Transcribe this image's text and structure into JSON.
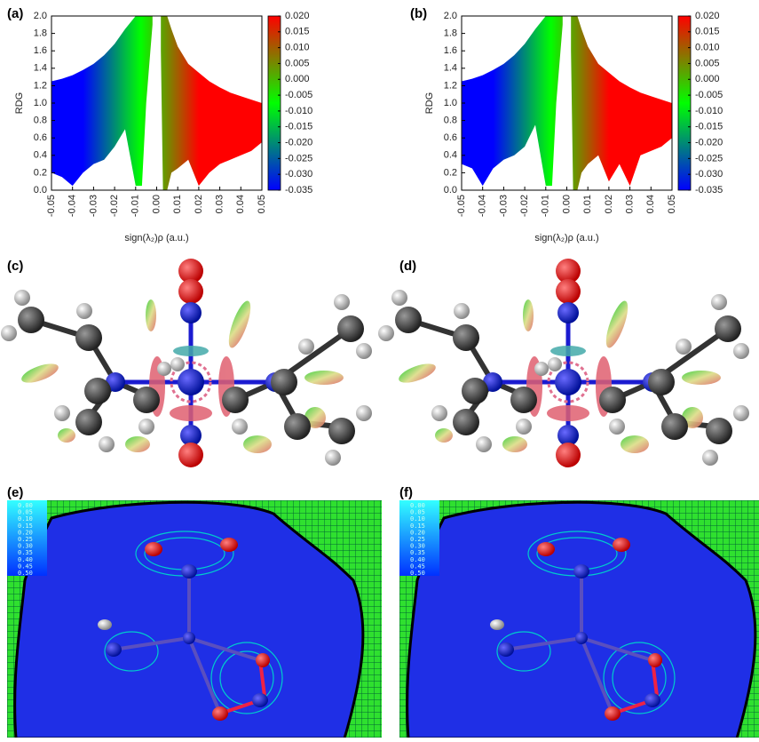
{
  "labels": [
    "(a)",
    "(b)",
    "(c)",
    "(d)",
    "(e)",
    "(f)"
  ],
  "contour_scale": [
    "0.00",
    "0.05",
    "0.10",
    "0.15",
    "0.20",
    "0.25",
    "0.30",
    "0.35",
    "0.40",
    "0.45",
    "0.50"
  ],
  "chart_data": [
    {
      "type": "band",
      "xlabel": "sign(λ₂)ρ (a.u.)",
      "ylabel": "RDG",
      "x": [
        -0.05,
        -0.045,
        -0.04,
        -0.035,
        -0.03,
        -0.025,
        -0.02,
        -0.015,
        -0.01,
        -0.007,
        -0.005,
        -0.003,
        -0.002,
        0,
        0.002,
        0.003,
        0.005,
        0.007,
        0.01,
        0.015,
        0.02,
        0.025,
        0.03,
        0.035,
        0.04,
        0.045,
        0.05
      ],
      "high": [
        1.25,
        1.28,
        1.32,
        1.38,
        1.45,
        1.55,
        1.68,
        1.85,
        2.0,
        2.0,
        2.0,
        2.0,
        2.0,
        null,
        2.0,
        2.0,
        2.0,
        1.85,
        1.65,
        1.45,
        1.35,
        1.25,
        1.18,
        1.12,
        1.08,
        1.04,
        1.0
      ],
      "low": [
        0.2,
        0.15,
        0.05,
        0.2,
        0.3,
        0.35,
        0.5,
        0.7,
        0.05,
        0.05,
        1.0,
        1.6,
        1.9,
        null,
        1.6,
        0.0,
        0.0,
        0.2,
        0.25,
        0.35,
        0.05,
        0.2,
        0.3,
        0.35,
        0.4,
        0.45,
        0.55
      ],
      "xlim": [
        -0.05,
        0.05
      ],
      "ylim": [
        0,
        2
      ],
      "xticks": [
        -0.05,
        -0.04,
        -0.03,
        -0.02,
        -0.01,
        {
          "value": 0,
          "label": "0.00"
        },
        0.01,
        0.02,
        0.03,
        0.04,
        0.05
      ],
      "yticks": [
        {
          "value": 0,
          "label": "0.0"
        },
        0.2,
        0.4,
        0.6,
        0.8,
        {
          "value": 1,
          "label": "1.0"
        },
        1.2,
        1.4,
        1.6,
        1.8,
        {
          "value": 2,
          "label": "2.0"
        }
      ],
      "colorbar": {
        "lim": [
          -0.035,
          0.02
        ],
        "colors": [
          "#0000ff",
          "#00ff00",
          "#ff0000"
        ],
        "ticks": [
          {
            "value": 0.02,
            "label": "0.020"
          },
          0.015,
          {
            "value": 0.01,
            "label": "0.010"
          },
          0.005,
          {
            "value": 0,
            "label": "0.000"
          },
          -0.005,
          {
            "value": -0.01,
            "label": "-0.010"
          },
          -0.015,
          {
            "value": -0.02,
            "label": "-0.020"
          },
          -0.025,
          {
            "value": -0.03,
            "label": "-0.030"
          },
          -0.035
        ]
      }
    },
    {
      "type": "band",
      "xlabel": "sign(λ₂)ρ (a.u.)",
      "ylabel": "RDG",
      "x": [
        -0.05,
        -0.045,
        -0.04,
        -0.035,
        -0.03,
        -0.025,
        -0.02,
        -0.015,
        -0.01,
        -0.007,
        -0.005,
        -0.003,
        -0.002,
        0,
        0.002,
        0.003,
        0.005,
        0.007,
        0.01,
        0.015,
        0.02,
        0.025,
        0.03,
        0.035,
        0.04,
        0.045,
        0.05
      ],
      "high": [
        1.25,
        1.28,
        1.32,
        1.38,
        1.45,
        1.55,
        1.68,
        1.85,
        2.0,
        2.0,
        2.0,
        2.0,
        2.0,
        null,
        2.0,
        2.0,
        2.0,
        1.85,
        1.65,
        1.45,
        1.35,
        1.25,
        1.18,
        1.12,
        1.08,
        1.04,
        1.0
      ],
      "low": [
        0.3,
        0.25,
        0.05,
        0.25,
        0.35,
        0.4,
        0.5,
        0.75,
        0.05,
        0.05,
        1.0,
        1.6,
        1.9,
        null,
        1.6,
        0.0,
        0.0,
        0.2,
        0.3,
        0.4,
        0.1,
        0.3,
        0.05,
        0.4,
        0.45,
        0.5,
        0.6
      ],
      "xlim": [
        -0.05,
        0.05
      ],
      "ylim": [
        0,
        2
      ],
      "xticks": [
        -0.05,
        -0.04,
        -0.03,
        -0.02,
        -0.01,
        {
          "value": 0,
          "label": "0.00"
        },
        0.01,
        0.02,
        0.03,
        0.04,
        0.05
      ],
      "yticks": [
        {
          "value": 0,
          "label": "0.0"
        },
        0.2,
        0.4,
        0.6,
        0.8,
        {
          "value": 1,
          "label": "1.0"
        },
        1.2,
        1.4,
        1.6,
        1.8,
        {
          "value": 2,
          "label": "2.0"
        }
      ],
      "colorbar": {
        "lim": [
          -0.035,
          0.02
        ],
        "colors": [
          "#0000ff",
          "#00ff00",
          "#ff0000"
        ],
        "ticks": [
          {
            "value": 0.02,
            "label": "0.020"
          },
          0.015,
          {
            "value": 0.01,
            "label": "0.010"
          },
          0.005,
          {
            "value": 0,
            "label": "0.000"
          },
          -0.005,
          {
            "value": -0.01,
            "label": "-0.010"
          },
          -0.015,
          {
            "value": -0.02,
            "label": "-0.020"
          },
          -0.025,
          {
            "value": -0.03,
            "label": "-0.030"
          },
          -0.035
        ]
      }
    }
  ]
}
